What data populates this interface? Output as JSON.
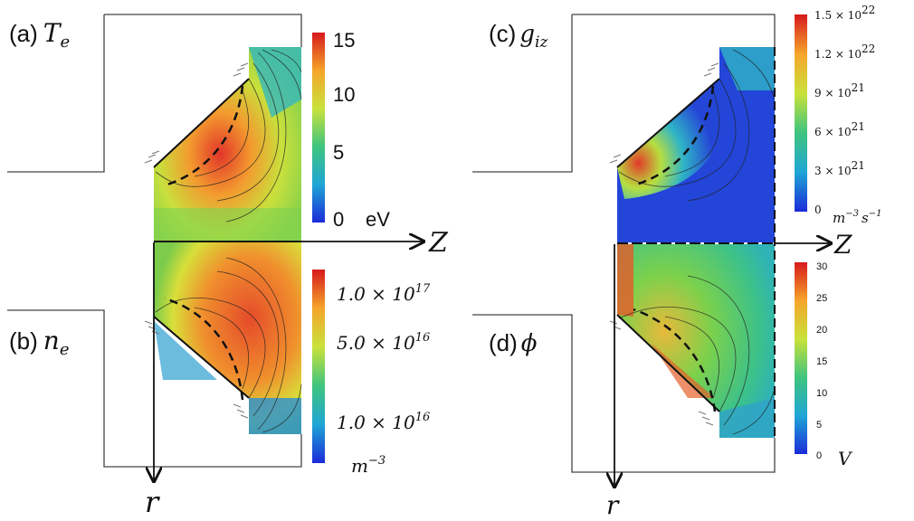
{
  "panels": {
    "a": {
      "tag": "(a)",
      "symbol": "T",
      "subscript": "e",
      "unit": "eV",
      "ticks": [
        "15",
        "10",
        "5",
        "0"
      ]
    },
    "b": {
      "tag": "(b)",
      "symbol": "n",
      "subscript": "e",
      "unit": "m",
      "unit_exp": "−3",
      "ticks": [
        {
          "m": "1.0 × 10",
          "e": "17"
        },
        {
          "m": "5.0 × 10",
          "e": "16"
        },
        {
          "m": "1.0 × 10",
          "e": "16"
        }
      ]
    },
    "c": {
      "tag": "(c)",
      "symbol": "g",
      "subscript": "iz",
      "unit_a": "m",
      "unit_a_exp": "−3",
      "unit_b": "s",
      "unit_b_exp": "−1",
      "ticks": [
        {
          "m": "1.5 × 10",
          "e": "22"
        },
        {
          "m": "1.2 × 10",
          "e": "22"
        },
        {
          "m": "9 × 10",
          "e": "21"
        },
        {
          "m": "6 × 10",
          "e": "21"
        },
        {
          "m": "3 × 10",
          "e": "21"
        },
        {
          "m": "0",
          "e": ""
        }
      ]
    },
    "d": {
      "tag": "(d)",
      "symbol": "ϕ",
      "unit": "V",
      "ticks": [
        "30",
        "25",
        "20",
        "15",
        "10",
        "5",
        "0"
      ]
    }
  },
  "axes": {
    "z": "Z",
    "r": "r"
  },
  "colors": {
    "red": "#d7191c",
    "orange": "#f38b28",
    "yellow": "#e8e43a",
    "green": "#5cc45a",
    "cyan": "#27b2c8",
    "blue": "#1b2bd8"
  }
}
